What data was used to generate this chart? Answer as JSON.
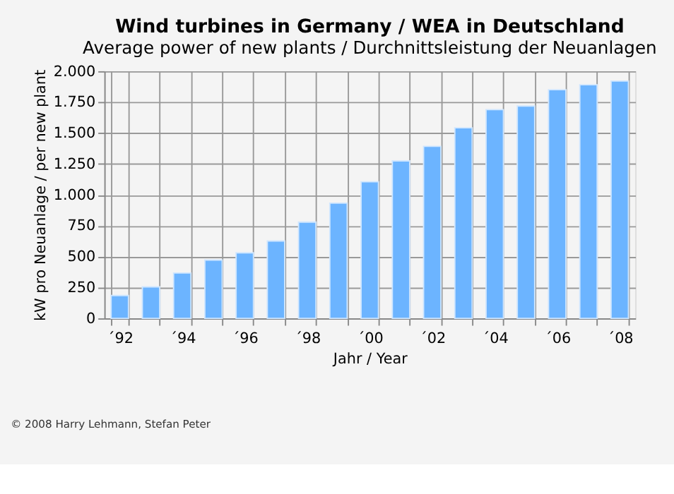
{
  "chart_data": {
    "type": "bar",
    "title": "Wind turbines in Germany / WEA in Deutschland",
    "subtitle": "Average power of new plants / Durchnittsleistung der Neuanlagen",
    "xlabel": "Jahr / Year",
    "ylabel": "kW pro Neuanlage / per new plant",
    "categories": [
      "´92",
      null,
      "´94",
      null,
      "´96",
      null,
      "´98",
      null,
      "´00",
      null,
      "´02",
      null,
      "´04",
      null,
      "´06",
      null,
      "´08"
    ],
    "values": [
      185,
      255,
      367,
      472,
      530,
      626,
      779,
      932,
      1105,
      1274,
      1392,
      1542,
      1689,
      1718,
      1850,
      1890,
      1920
    ],
    "color": "#6cb4ff",
    "ylim": [
      0,
      2000
    ],
    "yticks": [
      0,
      250,
      500,
      750,
      {
        "value": 1000,
        "label": "1.000"
      },
      {
        "value": 1250,
        "label": "1.250"
      },
      {
        "value": 1500,
        "label": "1.500"
      },
      {
        "value": 1750,
        "label": "1.750"
      },
      {
        "value": 2000,
        "label": "2.000"
      }
    ],
    "grid": true,
    "annotations": [
      "© 2008 Harry Lehmann, Stefan Peter"
    ]
  }
}
